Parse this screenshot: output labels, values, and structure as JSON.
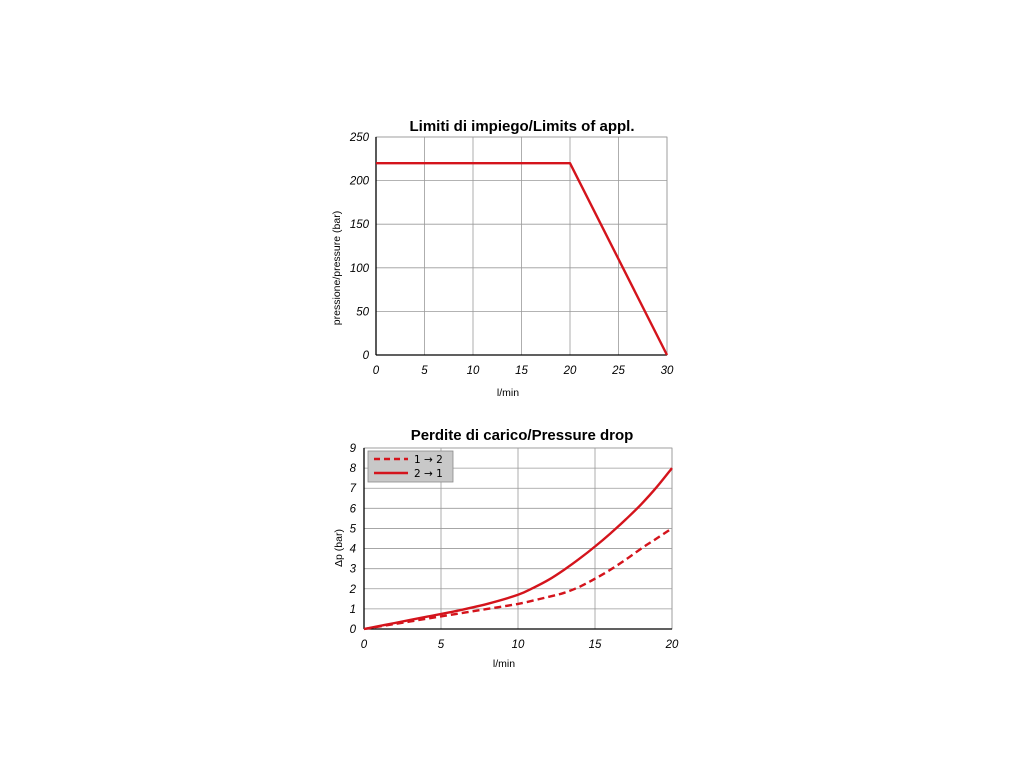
{
  "chart_data": [
    {
      "type": "line",
      "title": "Limiti di impiego/Limits of appl.",
      "xlabel": "l/min",
      "ylabel": "pressione/pressure (bar)",
      "xlim": [
        0,
        30
      ],
      "ylim": [
        0,
        250
      ],
      "xticks": [
        "0",
        "5",
        "10",
        "15",
        "20",
        "25",
        "30"
      ],
      "yticks": [
        "0",
        "50",
        "100",
        "150",
        "200",
        "250"
      ],
      "grid": true,
      "series": [
        {
          "color": "#d4141c",
          "dash": "solid",
          "x": [
            0,
            20,
            30
          ],
          "y": [
            220,
            220,
            0
          ]
        }
      ]
    },
    {
      "type": "line",
      "title": "Perdite di carico/Pressure drop",
      "xlabel": "l/min",
      "ylabel": "Δp (bar)",
      "xlim": [
        0,
        20
      ],
      "ylim": [
        0,
        9
      ],
      "xticks": [
        "0",
        "5",
        "10",
        "15",
        "20"
      ],
      "yticks": [
        "0",
        "1",
        "2",
        "3",
        "4",
        "5",
        "6",
        "7",
        "8",
        "9"
      ],
      "grid": true,
      "legend": "top-left",
      "series": [
        {
          "name": "1 → 2",
          "color": "#d4141c",
          "dash": "dashed",
          "x": [
            0,
            2,
            4,
            6,
            8,
            10,
            12,
            13,
            14,
            15,
            16,
            17,
            18,
            19,
            20
          ],
          "y": [
            0,
            0.25,
            0.5,
            0.75,
            1.0,
            1.25,
            1.6,
            1.8,
            2.1,
            2.5,
            2.95,
            3.45,
            4.0,
            4.5,
            5.0
          ]
        },
        {
          "name": "2 → 1",
          "color": "#d4141c",
          "dash": "solid",
          "x": [
            0,
            2,
            4,
            6,
            8,
            10,
            11,
            12,
            13,
            14,
            15,
            16,
            17,
            18,
            19,
            20
          ],
          "y": [
            0,
            0.3,
            0.6,
            0.9,
            1.25,
            1.7,
            2.05,
            2.45,
            2.95,
            3.5,
            4.1,
            4.75,
            5.45,
            6.2,
            7.05,
            8.0
          ]
        }
      ]
    }
  ]
}
